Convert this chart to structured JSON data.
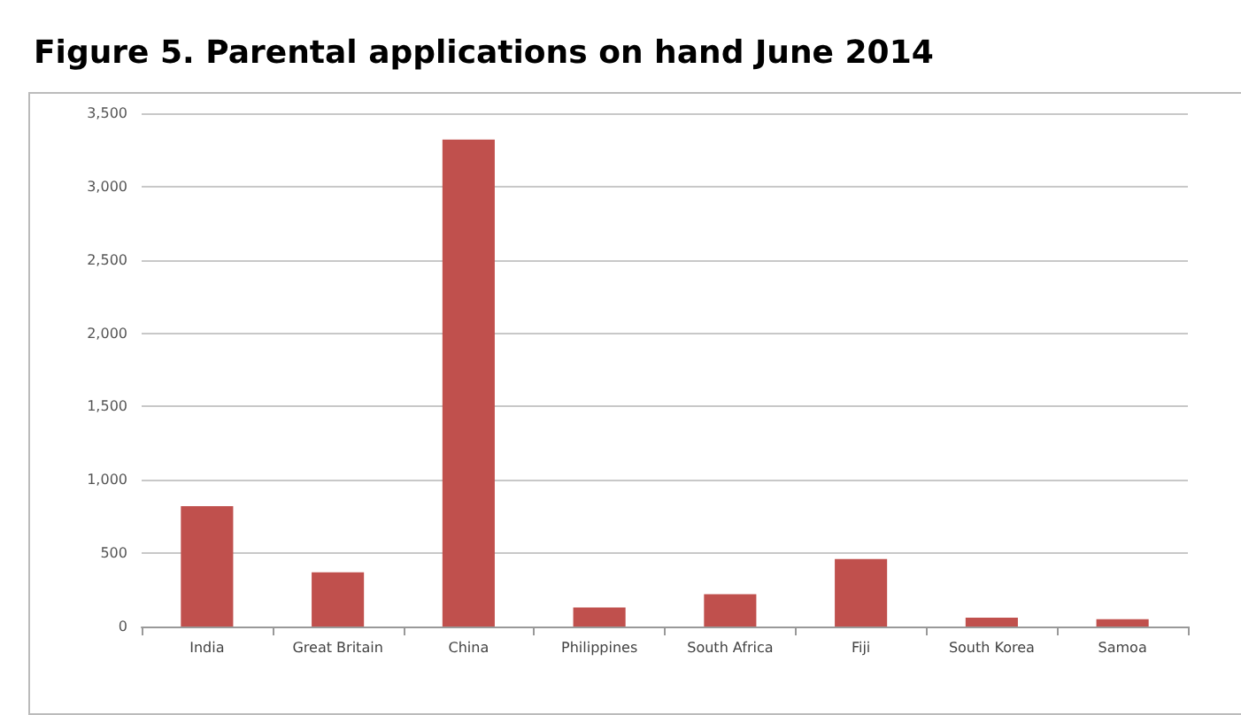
{
  "chart_data": {
    "type": "bar",
    "title": "Figure 5. Parental applications on hand June 2014",
    "categories": [
      "India",
      "Great Britain",
      "China",
      "Philippines",
      "South Africa",
      "Fiji",
      "South Korea",
      "Samoa"
    ],
    "values": [
      820,
      370,
      3320,
      130,
      220,
      460,
      60,
      50
    ],
    "color": "#c0504d",
    "ylim": [
      0,
      3500
    ],
    "yticks": [
      0,
      500,
      {
        "value": 1000,
        "label": "1,000"
      },
      {
        "value": 1500,
        "label": "1,500"
      },
      {
        "value": 2000,
        "label": "2,000"
      },
      {
        "value": 2500,
        "label": "2,500"
      },
      {
        "value": 3000,
        "label": "3,000"
      },
      {
        "value": 3500,
        "label": "3,500"
      }
    ],
    "grid": "y"
  }
}
